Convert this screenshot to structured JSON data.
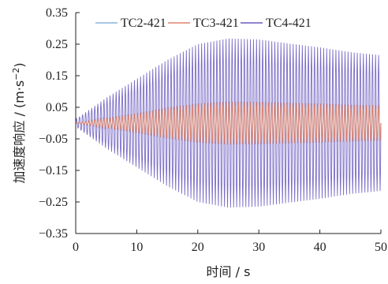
{
  "chart_data": {
    "type": "line",
    "xlabel": "时间 / s",
    "ylabel_main": "加速度响应 / (m·s",
    "ylabel_exp": "−2",
    "ylabel_close": ")",
    "xlim": [
      0,
      50
    ],
    "ylim": [
      -0.35,
      0.35
    ],
    "x_ticks": [
      "0",
      "10",
      "20",
      "30",
      "40",
      "50"
    ],
    "y_ticks": [
      "0.35",
      "0.25",
      "0.15",
      "0.05",
      "−0.05",
      "−0.15",
      "−0.25",
      "−0.35"
    ],
    "grid": false,
    "legend_placement": "top",
    "series": [
      {
        "name": "TC2-421",
        "color": "#8ab4de",
        "x": [
          0,
          5,
          10,
          15,
          20,
          25,
          30,
          35,
          40,
          45,
          50
        ],
        "amplitude": [
          0,
          0.016,
          0.031,
          0.049,
          0.062,
          0.068,
          0.067,
          0.064,
          0.062,
          0.058,
          0.056
        ]
      },
      {
        "name": "TC3-421",
        "color": "#e0826e",
        "x": [
          0,
          5,
          10,
          15,
          20,
          25,
          30,
          35,
          40,
          45,
          50
        ],
        "amplitude": [
          0,
          0.016,
          0.031,
          0.049,
          0.062,
          0.068,
          0.067,
          0.064,
          0.062,
          0.058,
          0.056
        ]
      },
      {
        "name": "TC4-421",
        "color": "#6b5cc0",
        "x": [
          0,
          5,
          10,
          15,
          20,
          25,
          30,
          35,
          40,
          45,
          50
        ],
        "amplitude": [
          0.012,
          0.08,
          0.14,
          0.2,
          0.25,
          0.268,
          0.265,
          0.252,
          0.24,
          0.225,
          0.215
        ]
      }
    ],
    "frequency_hz": 2.0
  }
}
